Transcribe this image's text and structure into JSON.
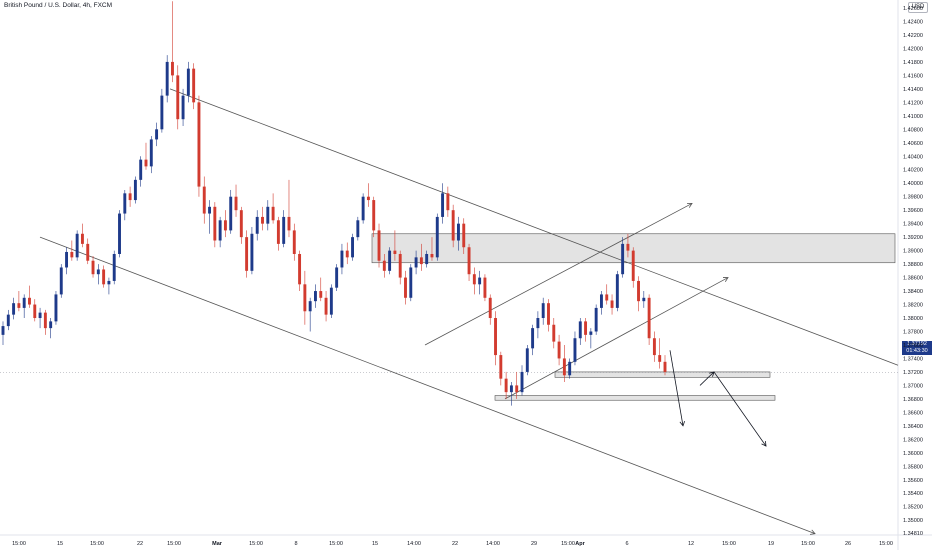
{
  "header": {
    "title": "British Pound / U.S. Dollar, 4h, FXCM",
    "currency": "USD"
  },
  "current_price": {
    "price": "1.37192",
    "countdown": "01:43:30",
    "value": 1.37192
  },
  "colors": {
    "up": "#1e3a8a",
    "down": "#d23b2f",
    "line": "#555555",
    "zone_fill": "#d9d9d9",
    "zone_stroke": "#555555"
  },
  "chart_data": {
    "type": "candlestick",
    "ylim": [
      1.34,
      1.43
    ],
    "y_ticks": [
      "1.42600",
      "1.42400",
      "1.42200",
      "1.42000",
      "1.41800",
      "1.41600",
      "1.41400",
      "1.41200",
      "1.41000",
      "1.40800",
      "1.40600",
      "1.40400",
      "1.40200",
      "1.40000",
      "1.39800",
      "1.39600",
      "1.39400",
      "1.39200",
      "1.39000",
      "1.38800",
      "1.38600",
      "1.38400",
      "1.38200",
      "1.38000",
      "1.37800",
      "1.37600",
      "1.37400",
      "1.37200",
      "1.37000",
      "1.36800",
      "1.36600",
      "1.36400",
      "1.36200",
      "1.36000",
      "1.35800",
      "1.35600",
      "1.35400",
      "1.35200",
      "1.35000",
      "1.34810"
    ],
    "x_ticks": [
      "15:00",
      "15",
      "15:00",
      "22",
      "15:00",
      "Mar",
      "15:00",
      "8",
      "15:00",
      "15",
      "14:00",
      "22",
      "14:00",
      "29",
      "15:00",
      "Apr",
      "6",
      "12",
      "15:00",
      "19",
      "15:00",
      "26",
      "15:00"
    ],
    "x_tick_labels_bold": [
      "Mar",
      "Apr"
    ],
    "candles": [
      [
        1.3775,
        1.3795,
        1.376,
        1.3788
      ],
      [
        1.3788,
        1.3812,
        1.3782,
        1.3805
      ],
      [
        1.3805,
        1.383,
        1.3798,
        1.3822
      ],
      [
        1.3822,
        1.384,
        1.381,
        1.3815
      ],
      [
        1.3815,
        1.3835,
        1.38,
        1.383
      ],
      [
        1.383,
        1.3848,
        1.3815,
        1.382
      ],
      [
        1.382,
        1.3828,
        1.3795,
        1.38
      ],
      [
        1.38,
        1.3815,
        1.3785,
        1.3808
      ],
      [
        1.3808,
        1.3812,
        1.3775,
        1.3785
      ],
      [
        1.3785,
        1.38,
        1.377,
        1.3795
      ],
      [
        1.3795,
        1.384,
        1.379,
        1.3835
      ],
      [
        1.3835,
        1.388,
        1.383,
        1.3875
      ],
      [
        1.3875,
        1.3905,
        1.3865,
        1.3898
      ],
      [
        1.3898,
        1.3915,
        1.3885,
        1.389
      ],
      [
        1.389,
        1.393,
        1.3885,
        1.3925
      ],
      [
        1.3925,
        1.394,
        1.3905,
        1.391
      ],
      [
        1.391,
        1.3918,
        1.388,
        1.3885
      ],
      [
        1.3885,
        1.3892,
        1.386,
        1.3865
      ],
      [
        1.3865,
        1.388,
        1.385,
        1.3872
      ],
      [
        1.3872,
        1.3878,
        1.3845,
        1.385
      ],
      [
        1.385,
        1.386,
        1.3835,
        1.3855
      ],
      [
        1.3855,
        1.39,
        1.385,
        1.3895
      ],
      [
        1.3895,
        1.396,
        1.389,
        1.3955
      ],
      [
        1.3955,
        1.399,
        1.3945,
        1.3985
      ],
      [
        1.3985,
        1.3995,
        1.3965,
        1.3975
      ],
      [
        1.3975,
        1.401,
        1.397,
        1.4005
      ],
      [
        1.4005,
        1.404,
        1.3995,
        1.4035
      ],
      [
        1.4035,
        1.406,
        1.402,
        1.4025
      ],
      [
        1.4025,
        1.407,
        1.4015,
        1.4065
      ],
      [
        1.4065,
        1.409,
        1.4055,
        1.408
      ],
      [
        1.408,
        1.414,
        1.4075,
        1.413
      ],
      [
        1.413,
        1.419,
        1.412,
        1.418
      ],
      [
        1.418,
        1.427,
        1.415,
        1.416
      ],
      [
        1.416,
        1.4175,
        1.408,
        1.4095
      ],
      [
        1.4095,
        1.414,
        1.4085,
        1.413
      ],
      [
        1.413,
        1.418,
        1.412,
        1.417
      ],
      [
        1.417,
        1.4178,
        1.411,
        1.412
      ],
      [
        1.412,
        1.413,
        1.398,
        1.3995
      ],
      [
        1.3995,
        1.401,
        1.394,
        1.3955
      ],
      [
        1.3955,
        1.3975,
        1.3925,
        1.3965
      ],
      [
        1.3965,
        1.3972,
        1.3905,
        1.3915
      ],
      [
        1.3915,
        1.395,
        1.3905,
        1.3945
      ],
      [
        1.3945,
        1.396,
        1.392,
        1.393
      ],
      [
        1.393,
        1.399,
        1.3925,
        1.398
      ],
      [
        1.398,
        1.3998,
        1.395,
        1.396
      ],
      [
        1.396,
        1.3965,
        1.391,
        1.392
      ],
      [
        1.392,
        1.393,
        1.386,
        1.387
      ],
      [
        1.387,
        1.3935,
        1.3865,
        1.3925
      ],
      [
        1.3925,
        1.396,
        1.3915,
        1.395
      ],
      [
        1.395,
        1.3965,
        1.393,
        1.394
      ],
      [
        1.394,
        1.3975,
        1.393,
        1.3965
      ],
      [
        1.3965,
        1.3985,
        1.394,
        1.3945
      ],
      [
        1.3945,
        1.395,
        1.39,
        1.391
      ],
      [
        1.391,
        1.396,
        1.3905,
        1.395
      ],
      [
        1.395,
        1.4005,
        1.392,
        1.393
      ],
      [
        1.393,
        1.394,
        1.3885,
        1.3895
      ],
      [
        1.3895,
        1.39,
        1.384,
        1.385
      ],
      [
        1.385,
        1.387,
        1.379,
        1.381
      ],
      [
        1.381,
        1.383,
        1.378,
        1.3825
      ],
      [
        1.3825,
        1.385,
        1.3815,
        1.384
      ],
      [
        1.384,
        1.386,
        1.3825,
        1.383
      ],
      [
        1.383,
        1.384,
        1.3795,
        1.3805
      ],
      [
        1.3805,
        1.385,
        1.38,
        1.3845
      ],
      [
        1.3845,
        1.388,
        1.384,
        1.3875
      ],
      [
        1.3875,
        1.391,
        1.3865,
        1.39
      ],
      [
        1.39,
        1.3912,
        1.388,
        1.389
      ],
      [
        1.389,
        1.3925,
        1.3885,
        1.392
      ],
      [
        1.392,
        1.395,
        1.3915,
        1.3945
      ],
      [
        1.3945,
        1.3985,
        1.394,
        1.398
      ],
      [
        1.398,
        1.4,
        1.3965,
        1.3975
      ],
      [
        1.3975,
        1.398,
        1.392,
        1.393
      ],
      [
        1.393,
        1.394,
        1.3875,
        1.3885
      ],
      [
        1.3885,
        1.3895,
        1.386,
        1.387
      ],
      [
        1.387,
        1.3905,
        1.3865,
        1.39
      ],
      [
        1.39,
        1.393,
        1.3885,
        1.3895
      ],
      [
        1.3895,
        1.39,
        1.385,
        1.386
      ],
      [
        1.386,
        1.387,
        1.382,
        1.383
      ],
      [
        1.383,
        1.388,
        1.3825,
        1.3875
      ],
      [
        1.3875,
        1.39,
        1.3865,
        1.389
      ],
      [
        1.389,
        1.391,
        1.387,
        1.388
      ],
      [
        1.388,
        1.39,
        1.3875,
        1.3895
      ],
      [
        1.3895,
        1.392,
        1.3885,
        1.389
      ],
      [
        1.389,
        1.3955,
        1.3885,
        1.395
      ],
      [
        1.395,
        1.4,
        1.394,
        1.3985
      ],
      [
        1.3985,
        1.3995,
        1.395,
        1.396
      ],
      [
        1.396,
        1.3968,
        1.3905,
        1.3915
      ],
      [
        1.3915,
        1.395,
        1.39,
        1.394
      ],
      [
        1.394,
        1.3948,
        1.3895,
        1.3905
      ],
      [
        1.3905,
        1.391,
        1.3855,
        1.3865
      ],
      [
        1.3865,
        1.3875,
        1.3835,
        1.385
      ],
      [
        1.385,
        1.387,
        1.3835,
        1.386
      ],
      [
        1.386,
        1.3865,
        1.3825,
        1.383
      ],
      [
        1.383,
        1.3835,
        1.379,
        1.38
      ],
      [
        1.38,
        1.381,
        1.373,
        1.3745
      ],
      [
        1.3745,
        1.375,
        1.37,
        1.371
      ],
      [
        1.371,
        1.372,
        1.368,
        1.369
      ],
      [
        1.369,
        1.3705,
        1.367,
        1.37
      ],
      [
        1.37,
        1.372,
        1.368,
        1.369
      ],
      [
        1.369,
        1.373,
        1.3685,
        1.372
      ],
      [
        1.372,
        1.376,
        1.3715,
        1.3755
      ],
      [
        1.3755,
        1.379,
        1.3745,
        1.3785
      ],
      [
        1.3785,
        1.381,
        1.377,
        1.38
      ],
      [
        1.38,
        1.383,
        1.379,
        1.3822
      ],
      [
        1.3822,
        1.3828,
        1.378,
        1.379
      ],
      [
        1.379,
        1.38,
        1.3755,
        1.3765
      ],
      [
        1.3765,
        1.3775,
        1.373,
        1.374
      ],
      [
        1.374,
        1.376,
        1.3705,
        1.3715
      ],
      [
        1.3715,
        1.374,
        1.371,
        1.3735
      ],
      [
        1.3735,
        1.378,
        1.373,
        1.377
      ],
      [
        1.377,
        1.38,
        1.376,
        1.3795
      ],
      [
        1.3795,
        1.38,
        1.3765,
        1.3775
      ],
      [
        1.3775,
        1.3785,
        1.3755,
        1.378
      ],
      [
        1.378,
        1.382,
        1.3775,
        1.3815
      ],
      [
        1.3815,
        1.384,
        1.3805,
        1.3835
      ],
      [
        1.3835,
        1.385,
        1.382,
        1.3826
      ],
      [
        1.3826,
        1.3835,
        1.3805,
        1.3815
      ],
      [
        1.3815,
        1.387,
        1.381,
        1.3865
      ],
      [
        1.3865,
        1.392,
        1.386,
        1.391
      ],
      [
        1.391,
        1.3925,
        1.389,
        1.39
      ],
      [
        1.39,
        1.3905,
        1.3845,
        1.3855
      ],
      [
        1.3855,
        1.3862,
        1.381,
        1.3825
      ],
      [
        1.3825,
        1.384,
        1.3815,
        1.383
      ],
      [
        1.383,
        1.3835,
        1.376,
        1.377
      ],
      [
        1.377,
        1.378,
        1.3735,
        1.3745
      ],
      [
        1.3745,
        1.377,
        1.3725,
        1.3735
      ],
      [
        1.3735,
        1.3745,
        1.3715,
        1.372
      ]
    ],
    "trendlines": [
      {
        "name": "upper-channel",
        "from": [
          "15",
          "1.41400"
        ],
        "to": "right-edge",
        "to_price": 1.373
      },
      {
        "name": "lower-channel",
        "from": [
          "15",
          "1.39200"
        ],
        "to": "right-edge",
        "to_price": 1.348
      },
      {
        "name": "rising-wedge-upper",
        "from": [
          "14:00",
          "1.37600"
        ],
        "to": "arrow",
        "to_price": 1.397
      },
      {
        "name": "rising-wedge-lower",
        "from": [
          "29",
          "1.36800"
        ],
        "to": "arrow",
        "to_price": 1.386
      }
    ],
    "zones": [
      {
        "name": "resistance-zone",
        "from": 1.3925,
        "to": 1.3882
      },
      {
        "name": "support-zone-1",
        "from": 1.372,
        "to": 1.3712
      },
      {
        "name": "support-zone-2",
        "from": 1.3685,
        "to": 1.3678
      }
    ],
    "projection_path": [
      1.3752,
      1.364,
      1.37,
      1.372,
      1.361
    ]
  }
}
